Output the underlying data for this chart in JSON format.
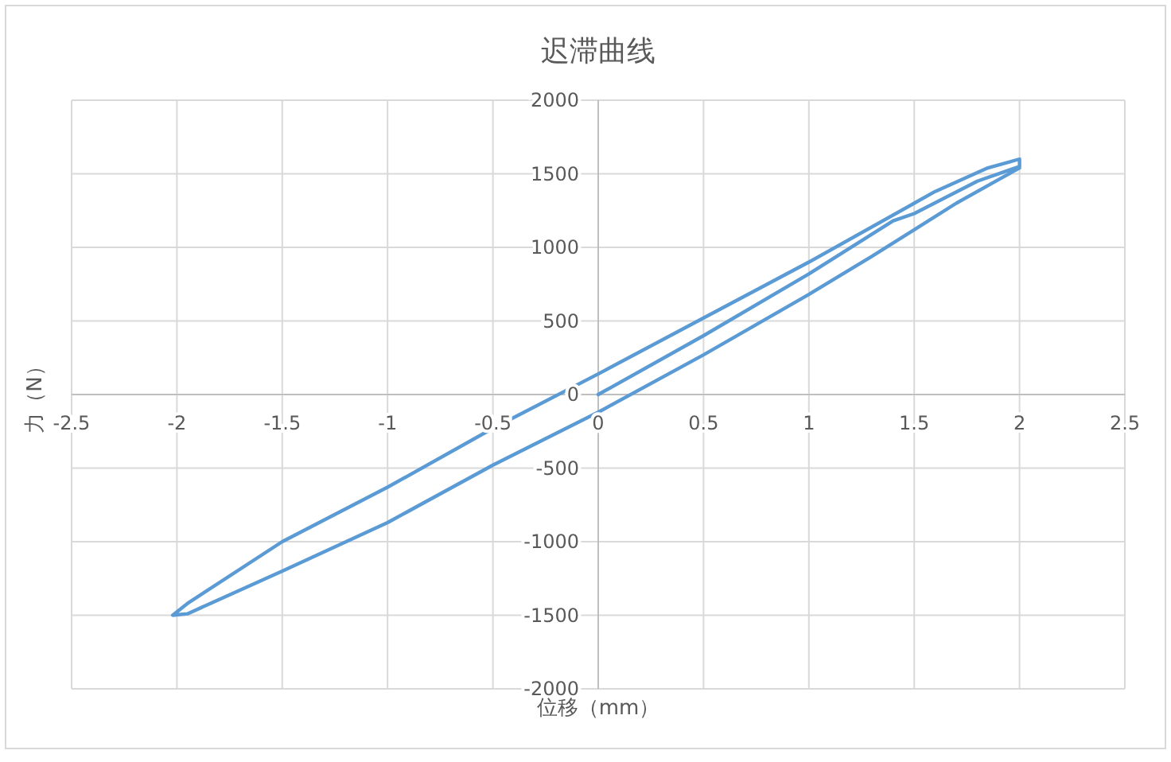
{
  "chart_data": {
    "type": "line",
    "title": "迟滞曲线",
    "xlabel": "位移（mm）",
    "ylabel": "力（N）",
    "x": [
      0,
      0.5,
      1,
      1.4,
      1.5,
      1.8,
      2,
      2,
      1.85,
      1.6,
      1.5,
      1,
      0.5,
      0,
      -0.5,
      -1,
      -1.5,
      -1.95,
      -2.02,
      -1.95,
      -1.5,
      -1,
      -0.5,
      0,
      0.5,
      1,
      1.3,
      1.5,
      1.7,
      1.9,
      2
    ],
    "values": [
      0,
      400,
      820,
      1180,
      1230,
      1450,
      1550,
      1600,
      1540,
      1380,
      1300,
      900,
      520,
      140,
      -230,
      -630,
      -1000,
      -1420,
      -1500,
      -1490,
      -1200,
      -870,
      -480,
      -120,
      270,
      680,
      940,
      1120,
      1300,
      1460,
      1540
    ],
    "color": "#5b9bd5",
    "xlim": [
      -2.5,
      2.5
    ],
    "ylim": [
      -2000,
      2000
    ],
    "xticks": [
      -2.5,
      -2,
      -1.5,
      -1,
      -0.5,
      0,
      0.5,
      1,
      1.5,
      2,
      2.5
    ],
    "yticks": [
      -2000,
      -1500,
      -1000,
      -500,
      0,
      500,
      1000,
      1500,
      2000
    ],
    "grid": true,
    "marker": "none",
    "line_style": "solid"
  }
}
